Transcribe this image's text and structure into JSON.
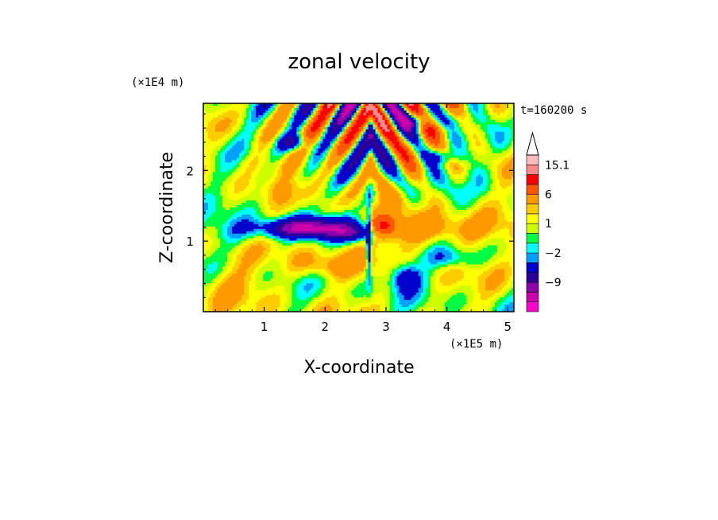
{
  "chart_data": {
    "type": "heatmap",
    "title": "zonal velocity",
    "xlabel": "X-coordinate",
    "ylabel": "Z-coordinate",
    "x_unit": "(×1E5 m)",
    "y_unit": "(×1E4 m)",
    "time_label": "t=160200 s",
    "xlim": [
      0,
      5.1
    ],
    "ylim": [
      0,
      2.95
    ],
    "x_ticks": [
      "1",
      "2",
      "3",
      "4",
      "5"
    ],
    "y_ticks": [
      "1",
      "2"
    ],
    "x_tick_values": [
      1,
      2,
      3,
      4,
      5
    ],
    "y_tick_values": [
      1,
      2
    ],
    "colorbar": {
      "labels": [
        {
          "value": 15.1,
          "text": "15.1"
        },
        {
          "value": 6,
          "text": "6"
        },
        {
          "value": 1,
          "text": "1"
        },
        {
          "value": -2,
          "text": "−2"
        },
        {
          "value": -9,
          "text": "−9"
        }
      ],
      "levels": [
        -15,
        -12,
        -9,
        -6,
        -3,
        -2,
        -1,
        0,
        1,
        2,
        3,
        6,
        9,
        12,
        15.1
      ],
      "colors": [
        "#ff00cc",
        "#cc00aa",
        "#8a00aa",
        "#2a0099",
        "#0000cc",
        "#00a0ff",
        "#00ffff",
        "#00ff44",
        "#ccff00",
        "#ffff00",
        "#ffcc00",
        "#ff9900",
        "#ff5500",
        "#ff0000",
        "#ff8888",
        "#ffbbbb"
      ]
    },
    "features": [
      {
        "name": "low-level westward jet",
        "x": 1.8,
        "z": 1.15,
        "sign": "negative"
      },
      {
        "name": "low-level eastward flow",
        "x": 3.8,
        "z": 1.15,
        "sign": "positive"
      },
      {
        "name": "upper tilted wave bands",
        "x": 2.6,
        "z": 2.2,
        "sign": "mixed"
      }
    ]
  }
}
